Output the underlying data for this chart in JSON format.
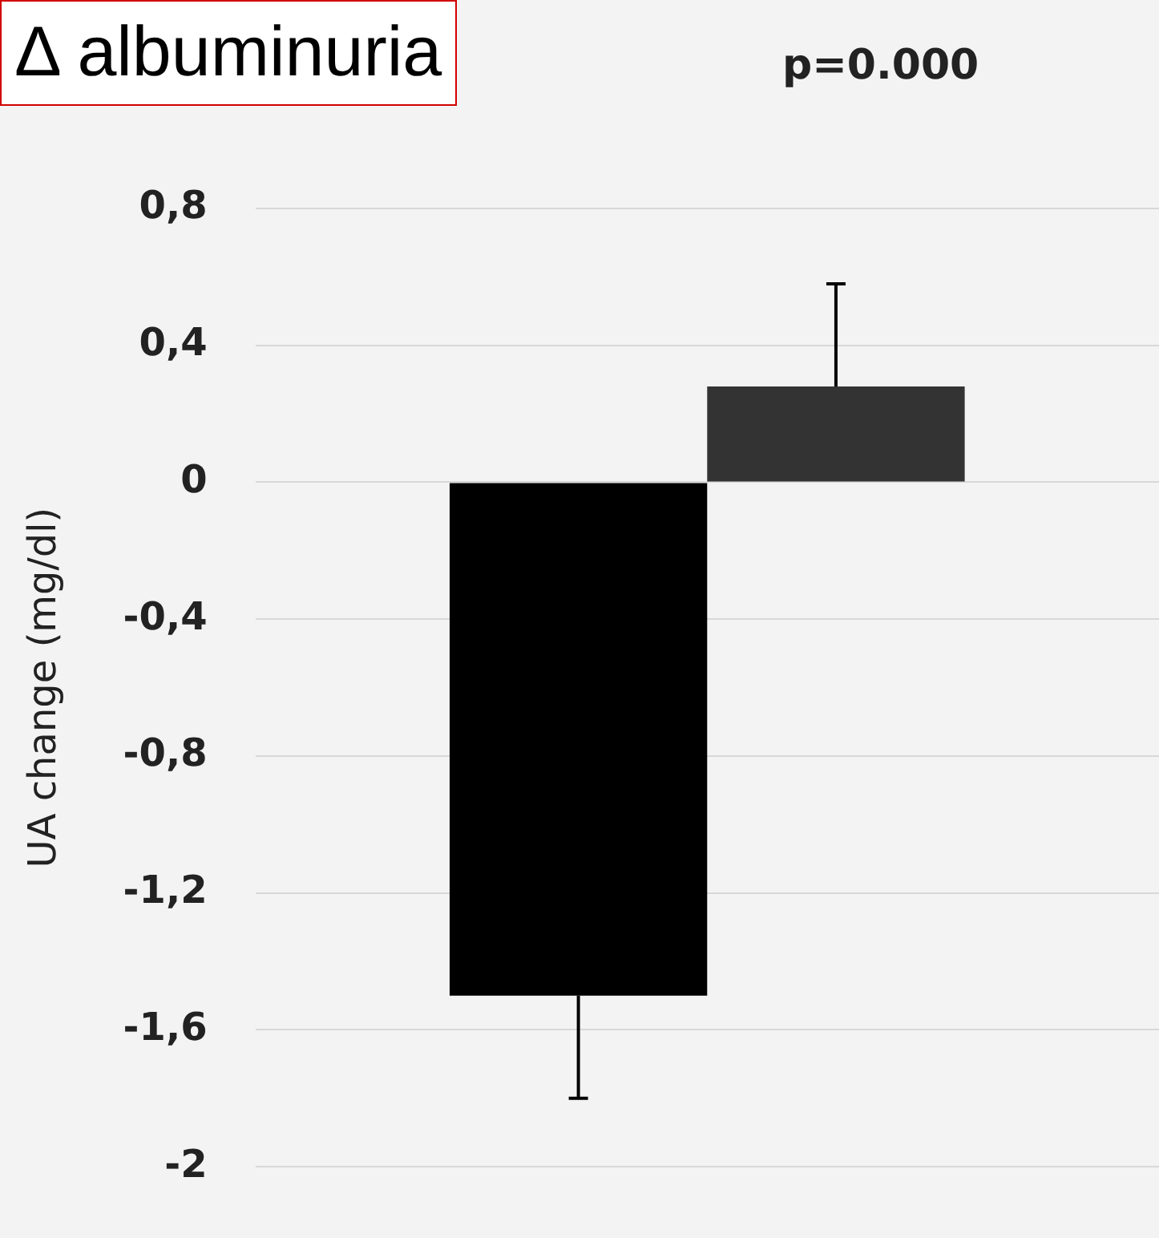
{
  "chart_data": {
    "type": "bar",
    "title": "Δ albuminuria",
    "annotations": [
      "p=0.000"
    ],
    "ylabel": "UA change (mg/dl)",
    "categories": [
      null
    ],
    "series": [
      {
        "color": "#000000",
        "values": [
          -1.5
        ],
        "errors": [
          [
            -1.8,
            -1.5
          ]
        ]
      },
      {
        "color": "#333333",
        "values": [
          0.28
        ],
        "errors": [
          [
            0.28,
            0.58
          ]
        ]
      }
    ],
    "ylim": [
      -2,
      0.8
    ],
    "yticks": [
      {
        "value": -2,
        "label": "-2"
      },
      {
        "value": -1.6,
        "label": "-1,6"
      },
      {
        "value": -1.2,
        "label": "-1,2"
      },
      {
        "value": -0.8,
        "label": "-0,8"
      },
      {
        "value": -0.4,
        "label": "-0,4"
      },
      {
        "value": 0,
        "label": "0"
      },
      {
        "value": 0.4,
        "label": "0,4"
      },
      {
        "value": 0.8,
        "label": "0,8"
      }
    ],
    "grid": "y",
    "legend": false
  }
}
